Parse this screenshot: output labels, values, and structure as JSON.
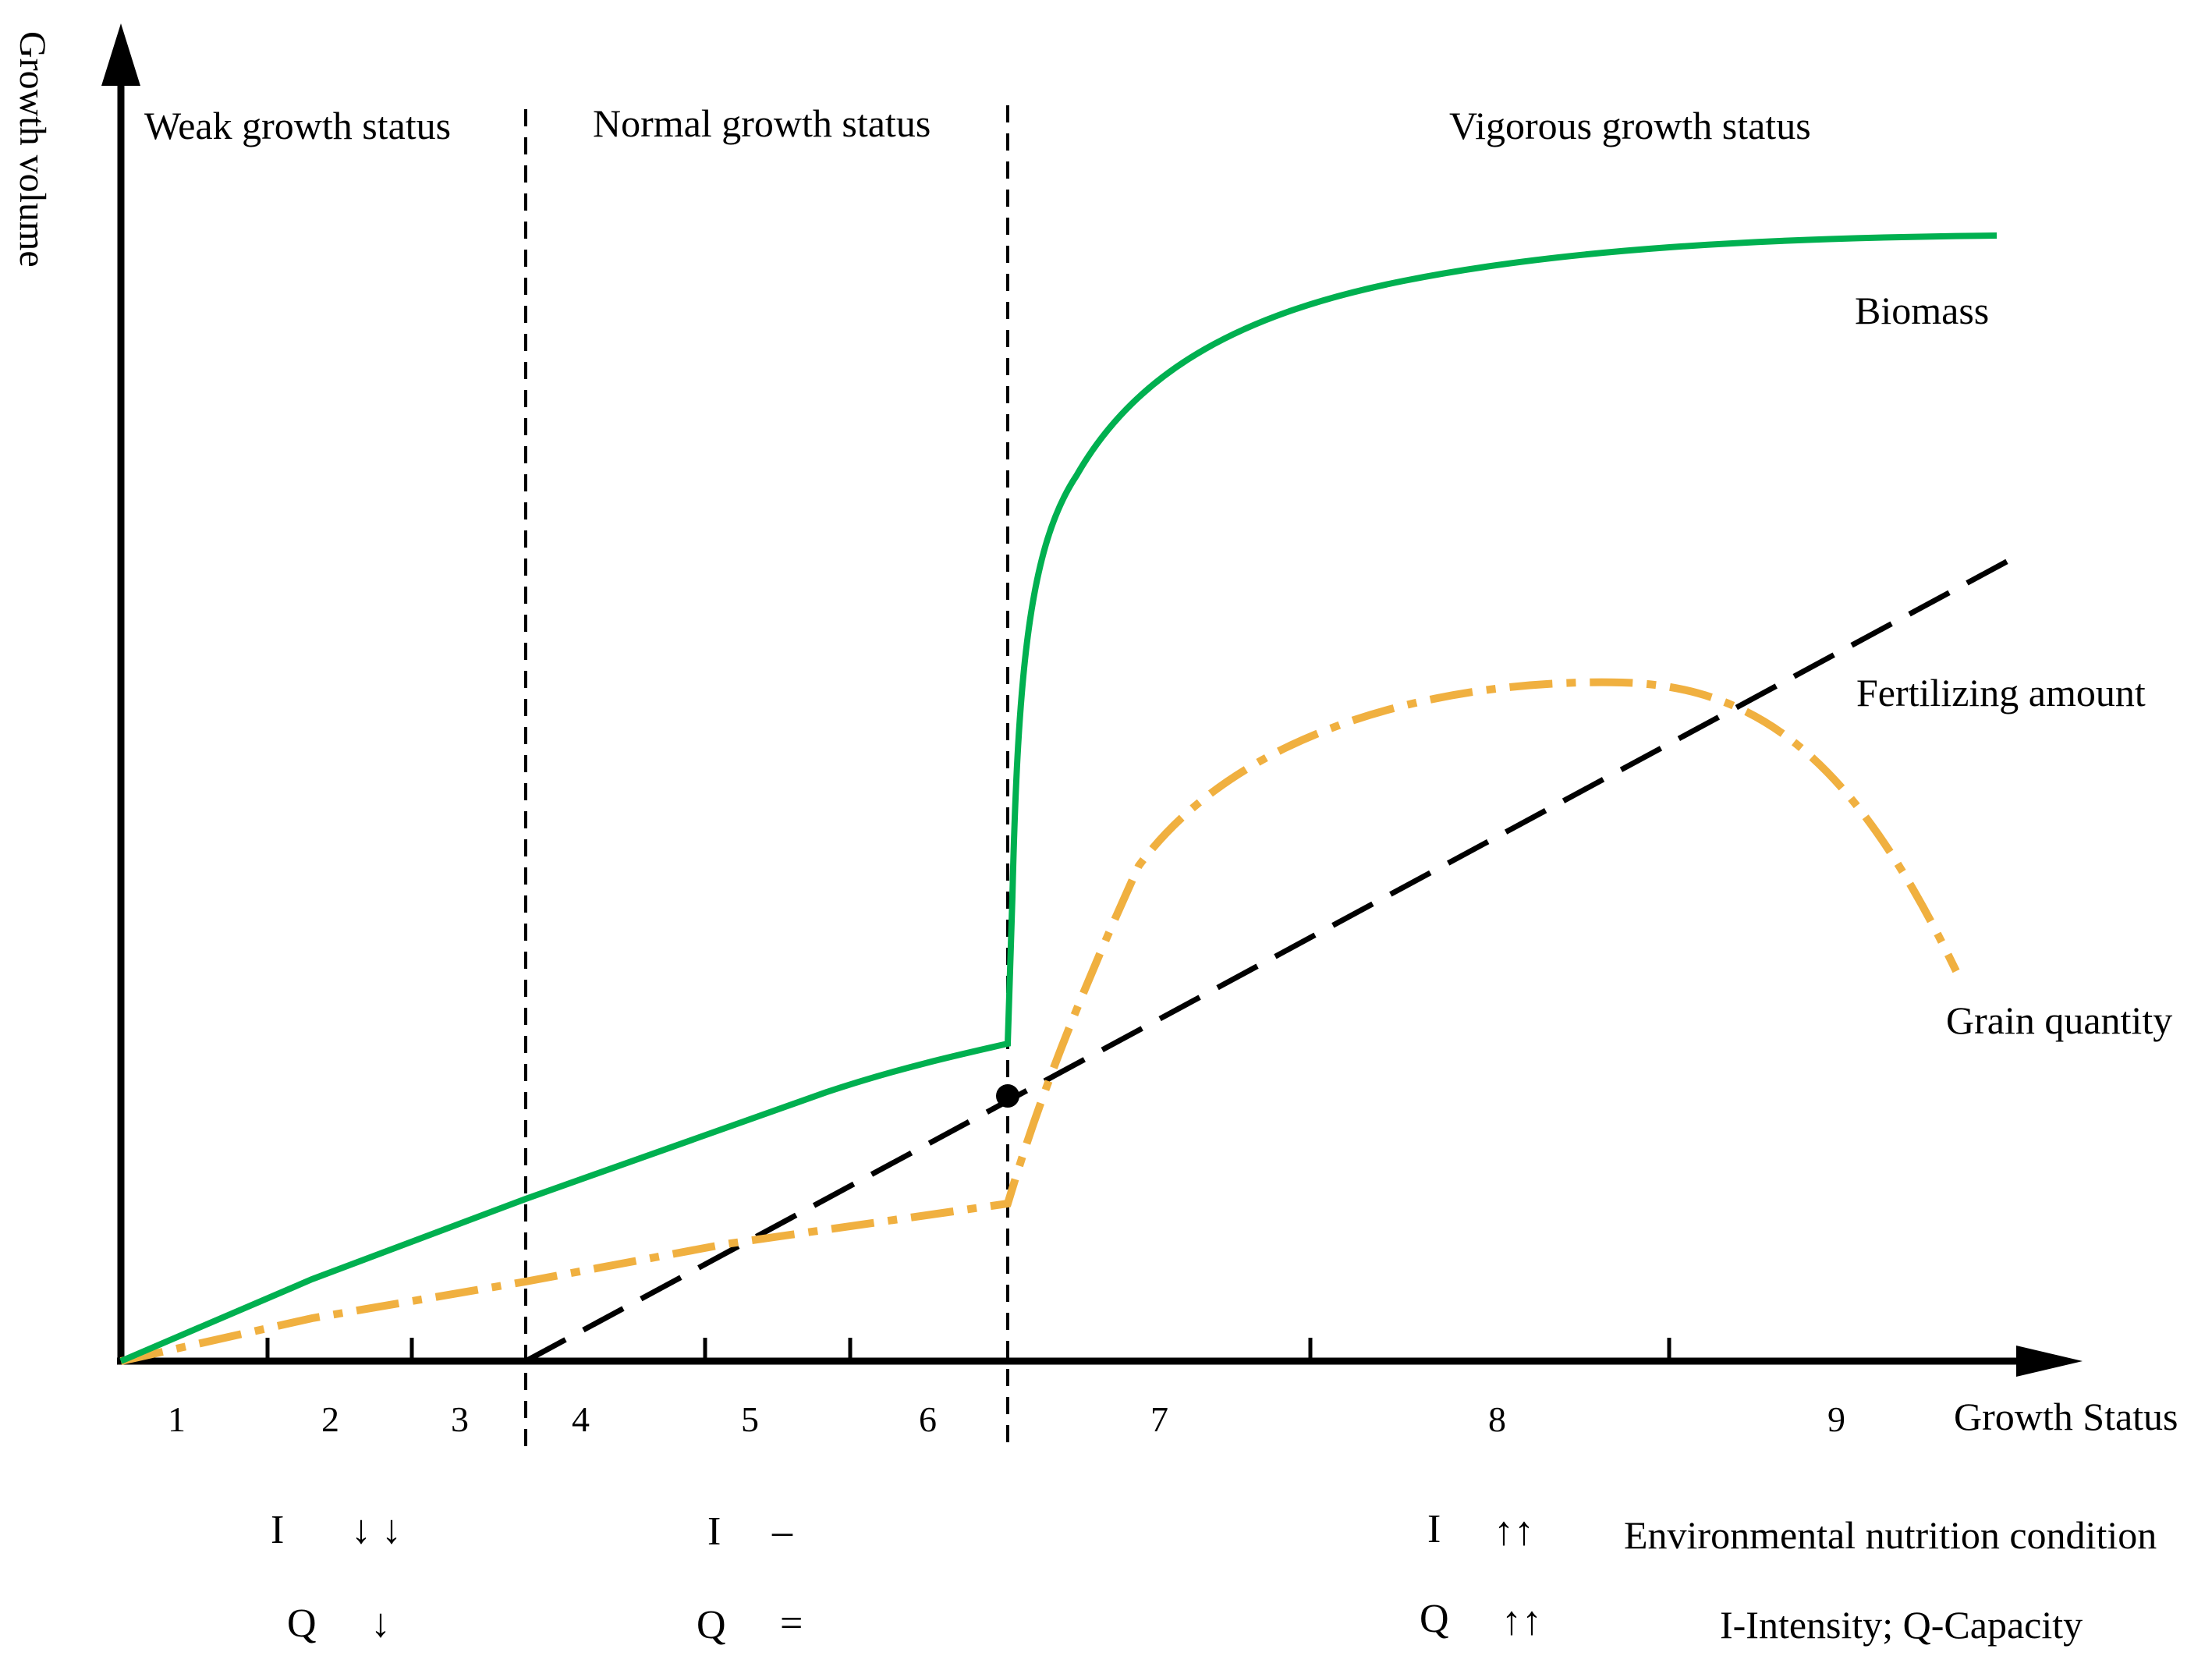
{
  "axes": {
    "y_title": "Growth volume",
    "x_title": "Growth Status"
  },
  "zones": [
    {
      "label": "Weak growth status"
    },
    {
      "label": "Normal growth status"
    },
    {
      "label": "Vigorous growth status"
    }
  ],
  "x_ticks": [
    "1",
    "2",
    "3",
    "4",
    "5",
    "6",
    "7",
    "8",
    "9"
  ],
  "curves": {
    "biomass": {
      "label": "Biomass",
      "color": "#00b050"
    },
    "fertilizing": {
      "label": "Fertilizing amount",
      "color": "#000000"
    },
    "grain": {
      "label": "Grain quantity",
      "color": "#f0b040"
    }
  },
  "conditions": {
    "weak": {
      "i_symbol": "I",
      "i_arrows": "↓ ↓",
      "q_symbol": "Q",
      "q_arrows": "↓"
    },
    "normal": {
      "i_symbol": "I",
      "i_arrows": "–",
      "q_symbol": "Q",
      "q_arrows": "="
    },
    "vigorous": {
      "i_symbol": "I",
      "i_arrows": "↑↑",
      "q_symbol": "Q",
      "q_arrows": "↑↑"
    }
  },
  "legend_notes": {
    "environment": "Environmental nutrition condition",
    "definition": "I-Intensity; Q-Capacity"
  }
}
